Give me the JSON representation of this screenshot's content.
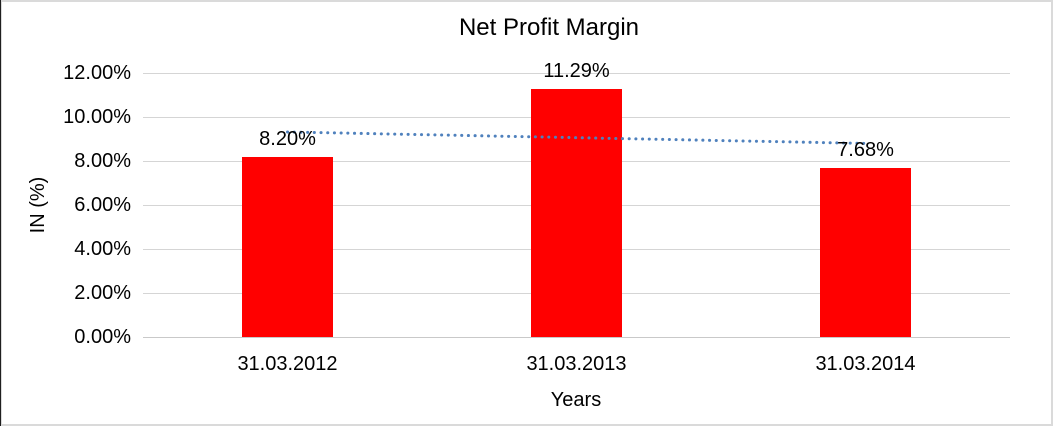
{
  "window": {
    "background": "#ffffff",
    "frame_border_color": "#dadada",
    "frame_edge_color": "#1f1f1f"
  },
  "chart_data": {
    "type": "bar",
    "title": "Net Profit Margin",
    "xlabel": "Years",
    "ylabel": "IN (%)",
    "categories": [
      "31.03.2012",
      "31.03.2013",
      "31.03.2014"
    ],
    "series": [
      {
        "name": "Net Profit Margin",
        "values": [
          8.2,
          11.29,
          7.68
        ]
      }
    ],
    "data_labels": [
      "8.20%",
      "11.29%",
      "7.68%"
    ],
    "y_ticks": [
      {
        "label": "12.00%",
        "value": 12
      },
      {
        "label": "10.00%",
        "value": 10
      },
      {
        "label": "8.00%",
        "value": 8
      },
      {
        "label": "6.00%",
        "value": 6
      },
      {
        "label": "4.00%",
        "value": 4
      },
      {
        "label": "2.00%",
        "value": 2
      },
      {
        "label": "0.00%",
        "value": 0
      }
    ],
    "ylim": [
      0,
      12
    ],
    "grid": true,
    "legend": "none",
    "colors": {
      "bar": "#FF0000",
      "gridline": "#d5d5d5",
      "axis_line": "#c9c9c9",
      "text": "#000000",
      "trendline": "#4F81BD"
    },
    "trendline": {
      "type": "linear",
      "style": "dotted",
      "start_value": 9.32,
      "end_value": 8.8
    }
  }
}
